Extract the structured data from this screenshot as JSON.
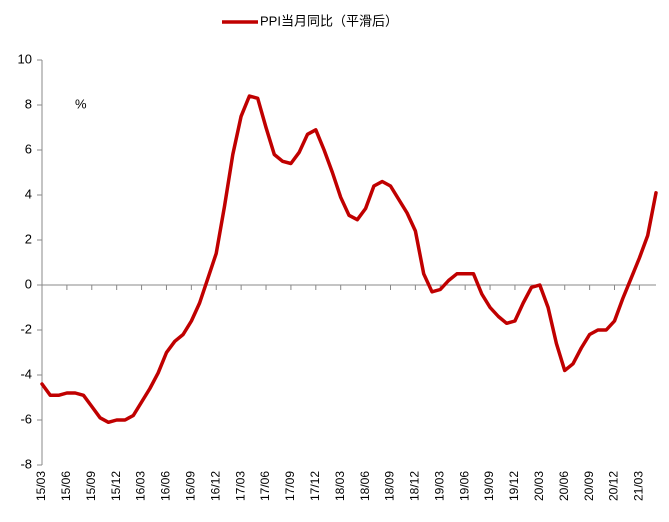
{
  "chart_data": {
    "type": "line",
    "series": [
      {
        "name": "PPI当月同比（平滑后）",
        "color": "#c00000",
        "values": [
          -4.4,
          -4.9,
          -4.9,
          -4.8,
          -4.8,
          -4.9,
          -5.4,
          -5.9,
          -6.1,
          -6.0,
          -6.0,
          -5.8,
          -5.2,
          -4.6,
          -3.9,
          -3.0,
          -2.5,
          -2.2,
          -1.6,
          -0.8,
          0.3,
          1.4,
          3.5,
          5.8,
          7.5,
          8.4,
          8.3,
          7.0,
          5.8,
          5.5,
          5.4,
          5.9,
          6.7,
          6.9,
          6.0,
          5.0,
          3.9,
          3.1,
          2.9,
          3.4,
          4.4,
          4.6,
          4.4,
          3.8,
          3.2,
          2.4,
          0.5,
          -0.3,
          -0.2,
          0.2,
          0.5,
          0.5,
          0.5,
          -0.4,
          -1.0,
          -1.4,
          -1.7,
          -1.6,
          -0.8,
          -0.1,
          0.0,
          -1.0,
          -2.6,
          -3.8,
          -3.5,
          -2.8,
          -2.2,
          -2.0,
          -2.0,
          -1.6,
          -0.6,
          0.3,
          1.2,
          2.2,
          4.1
        ]
      }
    ],
    "categories": [
      "15/03",
      null,
      null,
      "15/06",
      null,
      null,
      "15/09",
      null,
      null,
      "15/12",
      null,
      null,
      "16/03",
      null,
      null,
      "16/06",
      null,
      null,
      "16/09",
      null,
      null,
      "16/12",
      null,
      null,
      "17/03",
      null,
      null,
      "17/06",
      null,
      null,
      "17/09",
      null,
      null,
      "17/12",
      null,
      null,
      "18/03",
      null,
      null,
      "18/06",
      null,
      null,
      "18/09",
      null,
      null,
      "18/12",
      null,
      null,
      "19/03",
      null,
      null,
      "19/06",
      null,
      null,
      "19/09",
      null,
      null,
      "19/12",
      null,
      null,
      "20/03",
      null,
      null,
      "20/06",
      null,
      null,
      "20/09",
      null,
      null,
      "20/12",
      null,
      null,
      "21/03",
      null,
      null
    ],
    "ylim": [
      -8,
      10
    ],
    "yticks": [
      -8,
      -6,
      -4,
      -2,
      0,
      2,
      4,
      6,
      8,
      10
    ],
    "unit_label": "%",
    "legend": "top"
  }
}
